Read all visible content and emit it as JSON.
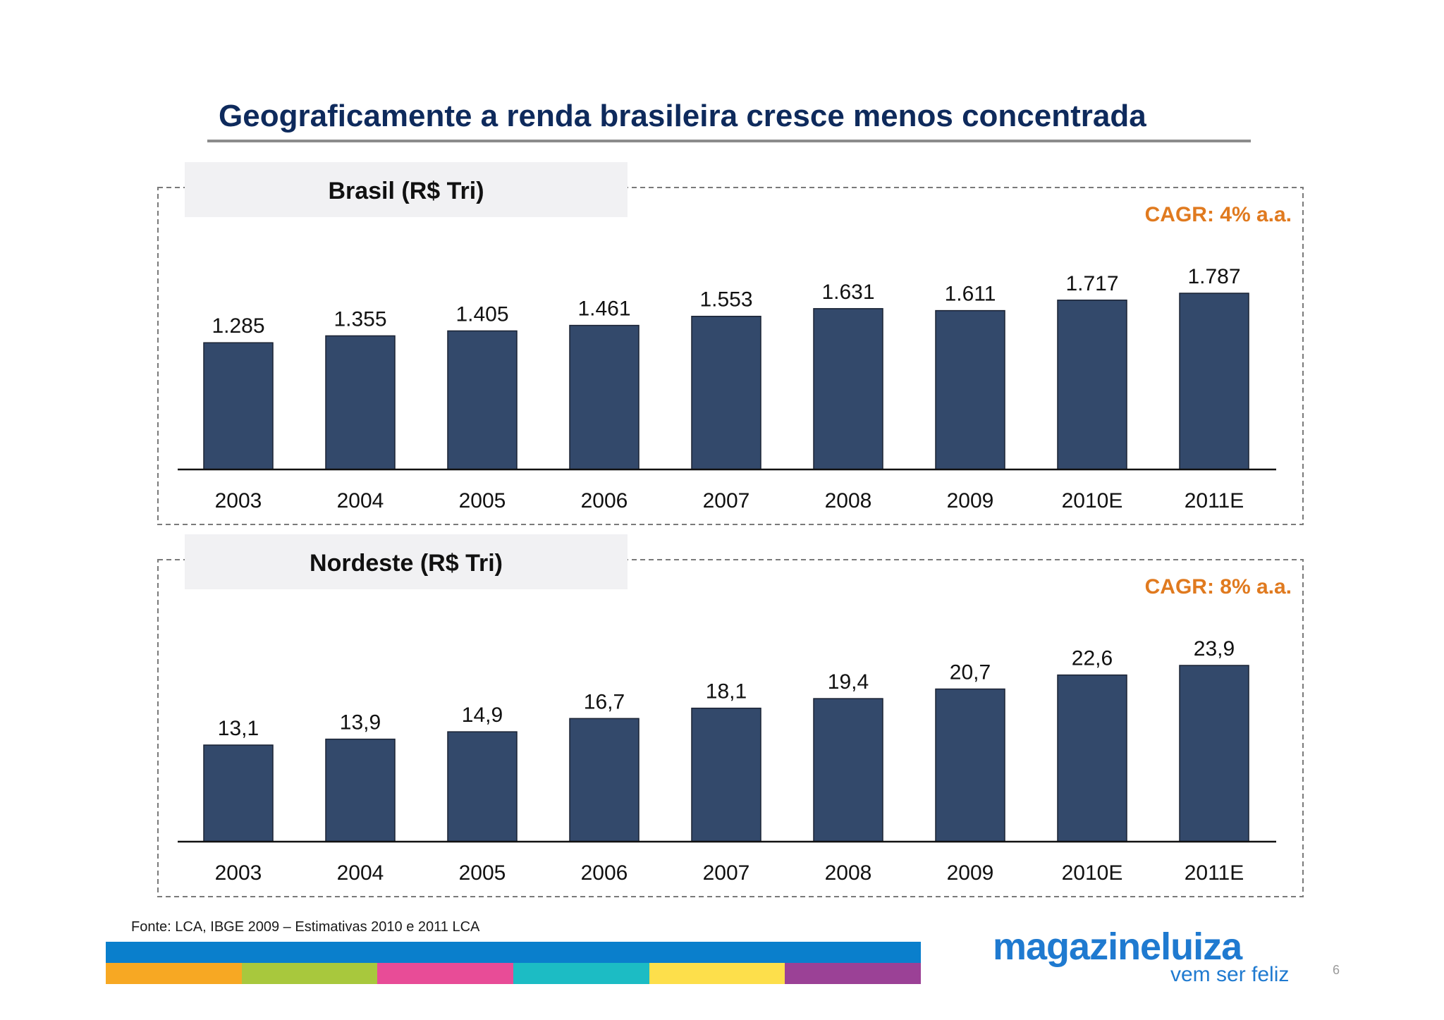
{
  "title": "Geograficamente a renda brasileira cresce menos concentrada",
  "source": "Fonte: LCA, IBGE 2009 – Estimativas 2010 e 2011 LCA",
  "page_number": "6",
  "logo": {
    "word": "magazineluiza",
    "tagline": "vem ser feliz"
  },
  "colors": {
    "bar": "#33496b",
    "title": "#0e2a5c",
    "cagr": "#e07a1f",
    "logo": "#1f7ad0",
    "strip_top": "#0a7fcc",
    "strip": [
      "#f7a823",
      "#a8c83d",
      "#e84c97",
      "#1cbcc4",
      "#fddf4b",
      "#9b4196"
    ]
  },
  "chart_data": [
    {
      "type": "bar",
      "title": "Brasil (R$ Tri)",
      "annotation": "CAGR: 4% a.a.",
      "categories": [
        "2003",
        "2004",
        "2005",
        "2006",
        "2007",
        "2008",
        "2009",
        "2010E",
        "2011E"
      ],
      "values": [
        1.285,
        1.355,
        1.405,
        1.461,
        1.553,
        1.631,
        1.611,
        1.717,
        1.787
      ],
      "value_labels": [
        "1.285",
        "1.355",
        "1.405",
        "1.461",
        "1.553",
        "1.631",
        "1.611",
        "1.717",
        "1.787"
      ],
      "ylim": [
        0,
        1.787
      ],
      "grid": false,
      "legend": "none"
    },
    {
      "type": "bar",
      "title": "Nordeste (R$ Tri)",
      "annotation": "CAGR: 8% a.a.",
      "categories": [
        "2003",
        "2004",
        "2005",
        "2006",
        "2007",
        "2008",
        "2009",
        "2010E",
        "2011E"
      ],
      "values": [
        13.1,
        13.9,
        14.9,
        16.7,
        18.1,
        19.4,
        20.7,
        22.6,
        23.9
      ],
      "value_labels": [
        "13,1",
        "13,9",
        "14,9",
        "16,7",
        "18,1",
        "19,4",
        "20,7",
        "22,6",
        "23,9"
      ],
      "ylim": [
        0,
        23.9
      ],
      "grid": false,
      "legend": "none"
    }
  ]
}
